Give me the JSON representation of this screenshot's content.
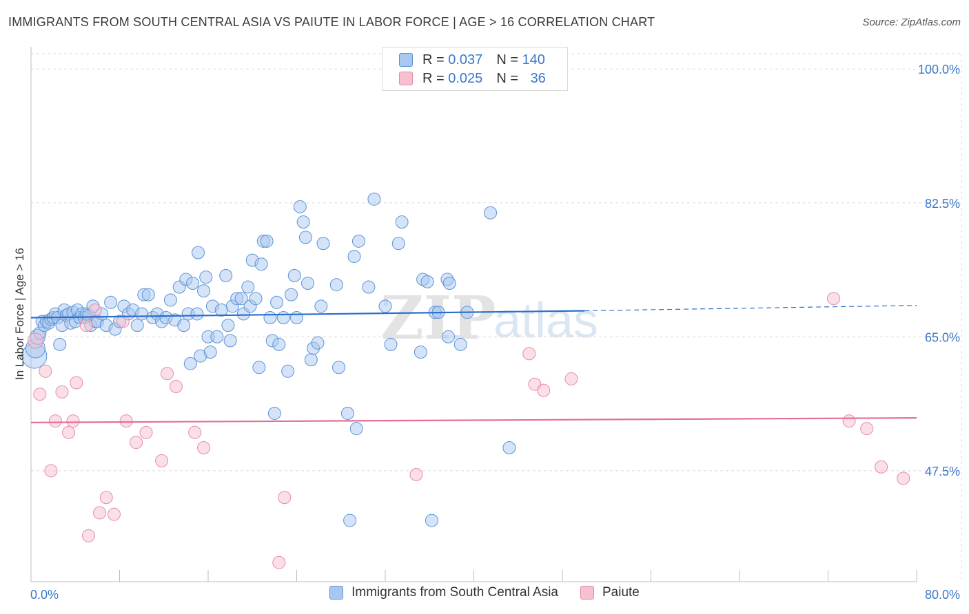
{
  "header": {
    "title": "IMMIGRANTS FROM SOUTH CENTRAL ASIA VS PAIUTE IN LABOR FORCE | AGE > 16 CORRELATION CHART",
    "source": "Source: ZipAtlas.com"
  },
  "legend_box": {
    "rows": [
      {
        "r_label": "R = ",
        "r_value": "0.037",
        "n_label": "N = ",
        "n_value": "140"
      },
      {
        "r_label": "R = ",
        "r_value": "0.025",
        "n_label": "N = ",
        "n_value": "36"
      }
    ]
  },
  "watermark": {
    "zip": "ZIP",
    "atlas": "atlas"
  },
  "colors": {
    "blue_fill": "#a9c8ef",
    "blue_stroke": "#5a93d6",
    "blue_line": "#2b6fcc",
    "pink_fill": "#f6c0cf",
    "pink_stroke": "#e78aa6",
    "pink_line": "#e46e96",
    "axis_text": "#3a78c9",
    "grid": "#d9d9d9"
  },
  "chart_data": {
    "type": "scatter",
    "title": "IMMIGRANTS FROM SOUTH CENTRAL ASIA VS PAIUTE IN LABOR FORCE | AGE > 16 CORRELATION CHART",
    "xlabel": "",
    "ylabel": "In Labor Force | Age > 16",
    "xlim": [
      0,
      80
    ],
    "ylim": [
      33,
      102
    ],
    "x_tick_labels": [
      "0.0%",
      "80.0%"
    ],
    "y_ticks": [
      47.5,
      65.0,
      82.5,
      100.0
    ],
    "y_tick_labels": [
      "47.5%",
      "65.0%",
      "82.5%",
      "100.0%"
    ],
    "grid": true,
    "legend_position": "bottom",
    "series": [
      {
        "name": "Immigrants from South Central Asia",
        "color": "#5a93d6",
        "R": 0.037,
        "N": 140,
        "trend": {
          "x0": 0.0,
          "y0": 67.5,
          "x1": 50.0,
          "y1": 68.4,
          "x_dash_end": 80.0,
          "y_dash_end": 69.1
        },
        "points": [
          {
            "x": 0.3,
            "y": 62.5,
            "s": 18
          },
          {
            "x": 0.4,
            "y": 63.5,
            "s": 14
          },
          {
            "x": 0.6,
            "y": 65.0,
            "s": 11
          },
          {
            "x": 0.8,
            "y": 65.5
          },
          {
            "x": 1.0,
            "y": 67.0
          },
          {
            "x": 1.2,
            "y": 66.5
          },
          {
            "x": 1.4,
            "y": 67.0
          },
          {
            "x": 1.6,
            "y": 66.8
          },
          {
            "x": 1.8,
            "y": 67.3
          },
          {
            "x": 2.0,
            "y": 67.5
          },
          {
            "x": 2.2,
            "y": 68.0
          },
          {
            "x": 2.4,
            "y": 67.5
          },
          {
            "x": 2.6,
            "y": 64.0
          },
          {
            "x": 2.8,
            "y": 66.5
          },
          {
            "x": 3.0,
            "y": 68.5
          },
          {
            "x": 3.2,
            "y": 67.8
          },
          {
            "x": 3.4,
            "y": 68.0
          },
          {
            "x": 3.6,
            "y": 66.8
          },
          {
            "x": 3.8,
            "y": 68.2
          },
          {
            "x": 4.0,
            "y": 67.0
          },
          {
            "x": 4.2,
            "y": 68.5
          },
          {
            "x": 4.4,
            "y": 67.5
          },
          {
            "x": 4.6,
            "y": 68.0
          },
          {
            "x": 4.8,
            "y": 67.5
          },
          {
            "x": 5.0,
            "y": 68.0
          },
          {
            "x": 5.2,
            "y": 67.8
          },
          {
            "x": 5.4,
            "y": 66.5
          },
          {
            "x": 5.6,
            "y": 69.0
          },
          {
            "x": 5.8,
            "y": 67.0
          },
          {
            "x": 6.0,
            "y": 67.0
          },
          {
            "x": 6.4,
            "y": 68.0
          },
          {
            "x": 6.8,
            "y": 66.5
          },
          {
            "x": 7.2,
            "y": 69.5
          },
          {
            "x": 7.6,
            "y": 66.0
          },
          {
            "x": 8.0,
            "y": 67.0
          },
          {
            "x": 8.4,
            "y": 69.0
          },
          {
            "x": 8.8,
            "y": 68.0
          },
          {
            "x": 9.2,
            "y": 68.5
          },
          {
            "x": 9.6,
            "y": 66.5
          },
          {
            "x": 10.0,
            "y": 68.0
          },
          {
            "x": 10.2,
            "y": 70.5
          },
          {
            "x": 10.6,
            "y": 70.5
          },
          {
            "x": 11.0,
            "y": 67.5
          },
          {
            "x": 11.4,
            "y": 68.0
          },
          {
            "x": 11.8,
            "y": 67.0
          },
          {
            "x": 12.2,
            "y": 67.5
          },
          {
            "x": 12.6,
            "y": 69.8
          },
          {
            "x": 13.0,
            "y": 67.2
          },
          {
            "x": 13.4,
            "y": 71.5
          },
          {
            "x": 13.8,
            "y": 66.5
          },
          {
            "x": 14.2,
            "y": 68.0
          },
          {
            "x": 14.0,
            "y": 72.5
          },
          {
            "x": 14.6,
            "y": 72.0
          },
          {
            "x": 14.4,
            "y": 61.5
          },
          {
            "x": 15.0,
            "y": 68.0
          },
          {
            "x": 15.3,
            "y": 62.5
          },
          {
            "x": 15.1,
            "y": 76.0
          },
          {
            "x": 15.6,
            "y": 71.0
          },
          {
            "x": 15.8,
            "y": 72.8
          },
          {
            "x": 16.0,
            "y": 65.0
          },
          {
            "x": 16.2,
            "y": 63.0
          },
          {
            "x": 16.4,
            "y": 69.0
          },
          {
            "x": 16.8,
            "y": 65.0
          },
          {
            "x": 17.2,
            "y": 68.5
          },
          {
            "x": 17.6,
            "y": 73.0
          },
          {
            "x": 17.8,
            "y": 66.5
          },
          {
            "x": 18.0,
            "y": 64.5
          },
          {
            "x": 18.2,
            "y": 69.0
          },
          {
            "x": 18.6,
            "y": 70.0
          },
          {
            "x": 19.0,
            "y": 70.0
          },
          {
            "x": 19.2,
            "y": 68.0
          },
          {
            "x": 19.6,
            "y": 71.5
          },
          {
            "x": 19.8,
            "y": 69.0
          },
          {
            "x": 20.0,
            "y": 75.0
          },
          {
            "x": 20.3,
            "y": 70.0
          },
          {
            "x": 20.6,
            "y": 61.0
          },
          {
            "x": 20.8,
            "y": 74.5
          },
          {
            "x": 21.0,
            "y": 77.5
          },
          {
            "x": 21.3,
            "y": 77.5
          },
          {
            "x": 21.6,
            "y": 67.5
          },
          {
            "x": 21.8,
            "y": 64.5
          },
          {
            "x": 22.0,
            "y": 55.0
          },
          {
            "x": 22.2,
            "y": 69.5
          },
          {
            "x": 22.4,
            "y": 64.0
          },
          {
            "x": 22.8,
            "y": 67.5
          },
          {
            "x": 23.2,
            "y": 60.5
          },
          {
            "x": 23.5,
            "y": 70.5
          },
          {
            "x": 23.8,
            "y": 73.0
          },
          {
            "x": 24.0,
            "y": 67.5
          },
          {
            "x": 24.3,
            "y": 82.0
          },
          {
            "x": 24.6,
            "y": 80.0
          },
          {
            "x": 24.8,
            "y": 78.0
          },
          {
            "x": 25.0,
            "y": 72.0
          },
          {
            "x": 25.3,
            "y": 62.0
          },
          {
            "x": 25.5,
            "y": 63.5
          },
          {
            "x": 25.9,
            "y": 64.2
          },
          {
            "x": 26.2,
            "y": 69.0
          },
          {
            "x": 26.4,
            "y": 77.2
          },
          {
            "x": 27.6,
            "y": 71.8
          },
          {
            "x": 27.8,
            "y": 61.0
          },
          {
            "x": 28.6,
            "y": 55.0
          },
          {
            "x": 28.8,
            "y": 41.0
          },
          {
            "x": 29.2,
            "y": 75.5
          },
          {
            "x": 29.4,
            "y": 53.0
          },
          {
            "x": 29.6,
            "y": 77.5
          },
          {
            "x": 30.5,
            "y": 71.5
          },
          {
            "x": 31.0,
            "y": 83.0
          },
          {
            "x": 32.0,
            "y": 69.0
          },
          {
            "x": 32.5,
            "y": 64.0
          },
          {
            "x": 33.2,
            "y": 77.2
          },
          {
            "x": 33.5,
            "y": 80.0
          },
          {
            "x": 35.2,
            "y": 63.0
          },
          {
            "x": 35.4,
            "y": 72.5
          },
          {
            "x": 35.8,
            "y": 72.2
          },
          {
            "x": 36.2,
            "y": 41.0
          },
          {
            "x": 36.5,
            "y": 68.2
          },
          {
            "x": 36.8,
            "y": 68.2
          },
          {
            "x": 37.6,
            "y": 72.5
          },
          {
            "x": 37.8,
            "y": 72.0
          },
          {
            "x": 37.7,
            "y": 65.0
          },
          {
            "x": 38.8,
            "y": 64.0
          },
          {
            "x": 39.4,
            "y": 68.2
          },
          {
            "x": 41.5,
            "y": 81.2
          },
          {
            "x": 43.2,
            "y": 50.5
          }
        ]
      },
      {
        "name": "Paiute",
        "color": "#e78aa6",
        "R": 0.025,
        "N": 36,
        "trend": {
          "x0": 0.0,
          "y0": 53.8,
          "x1": 80.0,
          "y1": 54.4
        },
        "points": [
          {
            "x": 0.4,
            "y": 64.5,
            "s": 11
          },
          {
            "x": 0.8,
            "y": 57.5
          },
          {
            "x": 1.3,
            "y": 60.5
          },
          {
            "x": 1.8,
            "y": 47.5
          },
          {
            "x": 2.2,
            "y": 54.0
          },
          {
            "x": 2.8,
            "y": 57.8
          },
          {
            "x": 3.4,
            "y": 52.5
          },
          {
            "x": 3.8,
            "y": 54.0
          },
          {
            "x": 4.1,
            "y": 59.0
          },
          {
            "x": 5.0,
            "y": 66.5
          },
          {
            "x": 5.2,
            "y": 39.0
          },
          {
            "x": 5.8,
            "y": 68.5
          },
          {
            "x": 6.2,
            "y": 42.0
          },
          {
            "x": 6.8,
            "y": 44.0
          },
          {
            "x": 7.5,
            "y": 41.8
          },
          {
            "x": 8.3,
            "y": 67.0
          },
          {
            "x": 8.6,
            "y": 54.0
          },
          {
            "x": 9.5,
            "y": 51.2
          },
          {
            "x": 10.4,
            "y": 52.5
          },
          {
            "x": 11.8,
            "y": 48.8
          },
          {
            "x": 12.3,
            "y": 60.2
          },
          {
            "x": 13.1,
            "y": 58.5
          },
          {
            "x": 14.8,
            "y": 52.5
          },
          {
            "x": 15.6,
            "y": 50.5
          },
          {
            "x": 22.4,
            "y": 35.5
          },
          {
            "x": 22.9,
            "y": 44.0
          },
          {
            "x": 34.8,
            "y": 47.0
          },
          {
            "x": 45.0,
            "y": 62.8
          },
          {
            "x": 45.5,
            "y": 58.8
          },
          {
            "x": 46.3,
            "y": 58.0
          },
          {
            "x": 48.8,
            "y": 59.5
          },
          {
            "x": 72.5,
            "y": 70.0
          },
          {
            "x": 73.9,
            "y": 54.0
          },
          {
            "x": 75.5,
            "y": 53.0
          },
          {
            "x": 76.8,
            "y": 48.0
          },
          {
            "x": 78.8,
            "y": 46.5
          }
        ]
      }
    ]
  }
}
